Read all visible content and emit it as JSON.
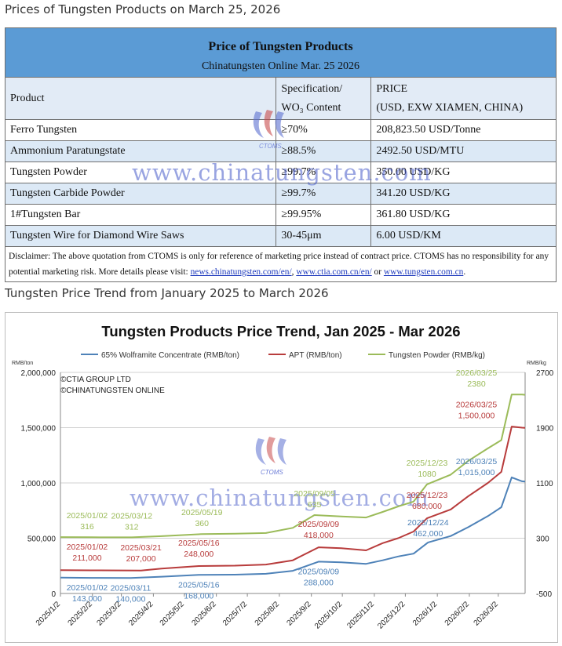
{
  "page": {
    "heading1": "Prices of Tungsten Products on March 25, 2026",
    "heading2": "Tungsten Price Trend from January 2025 to March 2026"
  },
  "table": {
    "title": "Price of Tungsten Products",
    "subtitle": "Chinatungsten Online Mar. 25 2026",
    "col_product": "Product",
    "col_spec_1": "Specification/",
    "col_spec_2": "WO₃ Content",
    "col_price_1": "PRICE",
    "col_price_2": "(USD, EXW XIAMEN, CHINA)",
    "rows": [
      {
        "product": "Ferro Tungsten",
        "spec": "≥70%",
        "price": "208,823.50 USD/Tonne"
      },
      {
        "product": "Ammonium Paratungstate",
        "spec": "≥88.5%",
        "price": "2492.50 USD/MTU"
      },
      {
        "product": "Tungsten Powder",
        "spec": "≥99.7%",
        "price": "350.00 USD/KG"
      },
      {
        "product": "Tungsten Carbide Powder",
        "spec": "≥99.7%",
        "price": "341.20 USD/KG"
      },
      {
        "product": "1#Tungsten Bar",
        "spec": "≥99.95%",
        "price": "361.80 USD/KG"
      },
      {
        "product": "Tungsten Wire for Diamond Wire Saws",
        "spec": "30-45μm",
        "price": "6.00 USD/KM"
      }
    ],
    "disclaimer_1": "Disclaimer: The above quotation from CTOMS is only for reference of marketing price instead of contract price. CTOMS has no responsibility for any potential marketing risk. More details please visit: ",
    "link1": "news.chinatungsten.com/en/",
    "sep1": ",  ",
    "link2": " www.ctia.com.cn/en/",
    "sep2": " or ",
    "link3": "www.tungsten.com.cn",
    "end": ".",
    "watermark": "www.chinatungsten.com",
    "logo_text": "CTOMS"
  },
  "chart_data": {
    "type": "line",
    "title": "Tungsten Products Price Trend, Jan 2025 - Mar 2026",
    "left_unit": "RMB/ton",
    "right_unit": "RMB/kg",
    "copyright_1": "©CTIA GROUP LTD",
    "copyright_2": "©CHINATUNGSTEN ONLINE",
    "watermark": "www.chinatungsten.com",
    "logo_text": "CTOMS",
    "x_ticks": [
      "2025/1/2",
      "2025/2/2",
      "2025/3/2",
      "2025/4/2",
      "2025/5/2",
      "2025/6/2",
      "2025/7/2",
      "2025/8/2",
      "2025/9/2",
      "2025/10/2",
      "2025/11/2",
      "2025/12/2",
      "2026/1/2",
      "2026/2/2",
      "2026/3/2"
    ],
    "x_range": [
      "2025-01-02",
      "2026-03-28"
    ],
    "y_left": {
      "min": 0,
      "max": 2000000,
      "ticks": [
        "0",
        "500,000",
        "1,000,000",
        "1,500,000",
        "2,000,000"
      ],
      "tick_values": [
        0,
        500000,
        1000000,
        1500000,
        2000000
      ]
    },
    "y_right": {
      "min": -500,
      "max": 2700,
      "ticks": [
        "-500",
        "300",
        "1100",
        "1900",
        "2700"
      ],
      "tick_values": [
        -500,
        300,
        1100,
        1900,
        2700
      ]
    },
    "grid": true,
    "legend_position": "top",
    "series": [
      {
        "name": "65% Wolframite Concentrate (RMB/ton)",
        "axis": "left",
        "color": "#4e82b8",
        "points": [
          [
            "2025-01-02",
            143000
          ],
          [
            "2025-02-01",
            141000
          ],
          [
            "2025-03-11",
            140000
          ],
          [
            "2025-04-10",
            152000
          ],
          [
            "2025-05-16",
            168000
          ],
          [
            "2025-06-20",
            170000
          ],
          [
            "2025-07-20",
            178000
          ],
          [
            "2025-08-15",
            205000
          ],
          [
            "2025-09-09",
            288000
          ],
          [
            "2025-10-01",
            282000
          ],
          [
            "2025-10-25",
            268000
          ],
          [
            "2025-11-10",
            300000
          ],
          [
            "2025-11-25",
            335000
          ],
          [
            "2025-12-10",
            360000
          ],
          [
            "2025-12-24",
            462000
          ],
          [
            "2026-01-15",
            520000
          ],
          [
            "2026-02-01",
            600000
          ],
          [
            "2026-02-20",
            700000
          ],
          [
            "2026-03-05",
            780000
          ],
          [
            "2026-03-15",
            1050000
          ],
          [
            "2026-03-25",
            1015000
          ],
          [
            "2026-03-28",
            1012000
          ]
        ]
      },
      {
        "name": "APT (RMB/ton)",
        "axis": "left",
        "color": "#b83c3c",
        "points": [
          [
            "2025-01-02",
            211000
          ],
          [
            "2025-02-01",
            209000
          ],
          [
            "2025-03-21",
            207000
          ],
          [
            "2025-04-10",
            225000
          ],
          [
            "2025-05-16",
            248000
          ],
          [
            "2025-06-20",
            252000
          ],
          [
            "2025-07-20",
            262000
          ],
          [
            "2025-08-15",
            300000
          ],
          [
            "2025-09-09",
            418000
          ],
          [
            "2025-10-01",
            410000
          ],
          [
            "2025-10-25",
            390000
          ],
          [
            "2025-11-10",
            455000
          ],
          [
            "2025-11-25",
            500000
          ],
          [
            "2025-12-10",
            560000
          ],
          [
            "2025-12-23",
            680000
          ],
          [
            "2026-01-15",
            760000
          ],
          [
            "2026-02-01",
            880000
          ],
          [
            "2026-02-20",
            1000000
          ],
          [
            "2026-03-05",
            1100000
          ],
          [
            "2026-03-15",
            1510000
          ],
          [
            "2026-03-25",
            1500000
          ],
          [
            "2026-03-28",
            1498000
          ]
        ]
      },
      {
        "name": "Tungsten Powder (RMB/kg)",
        "axis": "right",
        "color": "#9bbb59",
        "points": [
          [
            "2025-01-02",
            316
          ],
          [
            "2025-02-01",
            314
          ],
          [
            "2025-03-12",
            312
          ],
          [
            "2025-04-10",
            330
          ],
          [
            "2025-05-19",
            360
          ],
          [
            "2025-06-20",
            365
          ],
          [
            "2025-07-20",
            375
          ],
          [
            "2025-08-15",
            450
          ],
          [
            "2025-09-05",
            635
          ],
          [
            "2025-10-01",
            615
          ],
          [
            "2025-10-25",
            600
          ],
          [
            "2025-11-10",
            680
          ],
          [
            "2025-11-25",
            760
          ],
          [
            "2025-12-10",
            830
          ],
          [
            "2025-12-23",
            1080
          ],
          [
            "2026-01-15",
            1220
          ],
          [
            "2026-02-01",
            1420
          ],
          [
            "2026-02-20",
            1600
          ],
          [
            "2026-03-05",
            1720
          ],
          [
            "2026-03-15",
            2380
          ],
          [
            "2026-03-25",
            2380
          ],
          [
            "2026-03-28",
            2375
          ]
        ]
      }
    ],
    "annotations": [
      {
        "series": 0,
        "date": "2025-01-02",
        "value": 143000,
        "label": "2025/01/02",
        "value_label": "143,000"
      },
      {
        "series": 0,
        "date": "2025-03-11",
        "value": 140000,
        "label": "2025/03/11",
        "value_label": "140,000"
      },
      {
        "series": 0,
        "date": "2025-05-16",
        "value": 168000,
        "label": "2025/05/16",
        "value_label": "168,000"
      },
      {
        "series": 0,
        "date": "2025-09-09",
        "value": 288000,
        "label": "2025/09/09",
        "value_label": "288,000"
      },
      {
        "series": 0,
        "date": "2025-12-24",
        "value": 462000,
        "label": "2025/12/24",
        "value_label": "462,000"
      },
      {
        "series": 0,
        "date": "2026-03-25",
        "value": 1015000,
        "label": "2026/03/25",
        "value_label": "1,015,000"
      },
      {
        "series": 1,
        "date": "2025-01-02",
        "value": 211000,
        "label": "2025/01/02",
        "value_label": "211,000"
      },
      {
        "series": 1,
        "date": "2025-03-21",
        "value": 207000,
        "label": "2025/03/21",
        "value_label": "207,000"
      },
      {
        "series": 1,
        "date": "2025-05-16",
        "value": 248000,
        "label": "2025/05/16",
        "value_label": "248,000"
      },
      {
        "series": 1,
        "date": "2025-09-09",
        "value": 418000,
        "label": "2025/09/09",
        "value_label": "418,000"
      },
      {
        "series": 1,
        "date": "2025-12-23",
        "value": 680000,
        "label": "2025/12/23",
        "value_label": "680,000"
      },
      {
        "series": 1,
        "date": "2026-03-25",
        "value": 1500000,
        "label": "2026/03/25",
        "value_label": "1,500,000"
      },
      {
        "series": 2,
        "date": "2025-01-02",
        "value": 316,
        "label": "2025/01/02",
        "value_label": "316"
      },
      {
        "series": 2,
        "date": "2025-03-12",
        "value": 312,
        "label": "2025/03/12",
        "value_label": "312"
      },
      {
        "series": 2,
        "date": "2025-05-19",
        "value": 360,
        "label": "2025/05/19",
        "value_label": "360"
      },
      {
        "series": 2,
        "date": "2025-09-05",
        "value": 635,
        "label": "2025/09/05",
        "value_label": "635"
      },
      {
        "series": 2,
        "date": "2025-12-23",
        "value": 1080,
        "label": "2025/12/23",
        "value_label": "1080"
      },
      {
        "series": 2,
        "date": "2026-03-25",
        "value": 2380,
        "label": "2026/03/25",
        "value_label": "2380"
      }
    ]
  }
}
